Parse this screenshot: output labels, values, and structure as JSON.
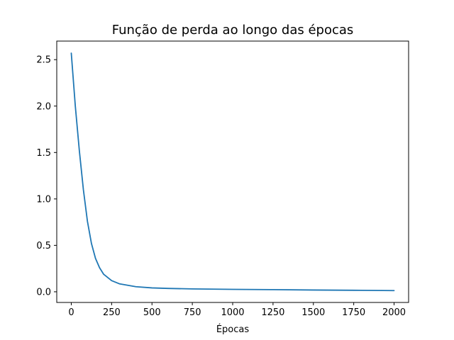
{
  "chart_data": {
    "type": "line",
    "title": "Função de perda ao longo das épocas",
    "xlabel": "Épocas",
    "ylabel": "",
    "xlim": [
      -90,
      2090
    ],
    "ylim": [
      -0.115,
      2.7
    ],
    "xticks": [
      0,
      250,
      500,
      750,
      1000,
      1250,
      1500,
      1750,
      2000
    ],
    "xtick_labels": [
      "0",
      "250",
      "500",
      "750",
      "1000",
      "1250",
      "1500",
      "1750",
      "2000"
    ],
    "yticks": [
      0.0,
      0.5,
      1.0,
      1.5,
      2.0,
      2.5
    ],
    "ytick_labels": [
      "0.0",
      "0.5",
      "1.0",
      "1.5",
      "2.0",
      "2.5"
    ],
    "grid": false,
    "legend": "none",
    "series": [
      {
        "color": "#1f77b4",
        "x": [
          0,
          25,
          50,
          75,
          100,
          125,
          150,
          175,
          200,
          250,
          300,
          400,
          500,
          600,
          750,
          1000,
          1250,
          1500,
          1750,
          2000
        ],
        "y": [
          2.57,
          2.0,
          1.52,
          1.1,
          0.76,
          0.52,
          0.36,
          0.26,
          0.19,
          0.12,
          0.085,
          0.055,
          0.042,
          0.036,
          0.031,
          0.026,
          0.023,
          0.019,
          0.016,
          0.013
        ]
      }
    ]
  }
}
